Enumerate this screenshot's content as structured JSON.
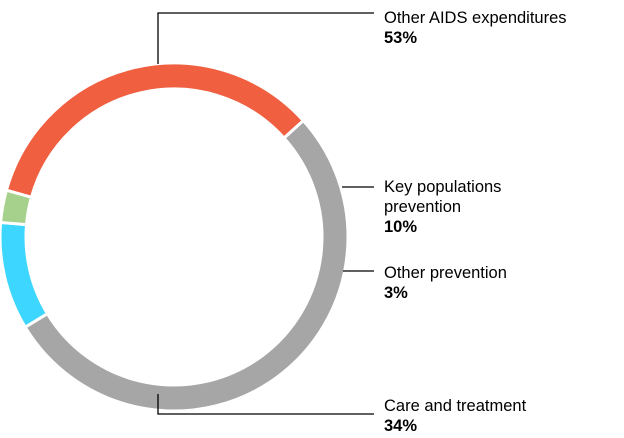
{
  "chart_data": {
    "type": "pie",
    "style": "donut",
    "slices": [
      {
        "label": "Other AIDS expenditures",
        "label_lines": [
          "Other AIDS expenditures"
        ],
        "value": 53,
        "display": "53%",
        "color": "#a6a6a6"
      },
      {
        "label": "Key populations prevention",
        "label_lines": [
          "Key populations",
          "prevention"
        ],
        "value": 10,
        "display": "10%",
        "color": "#3dd6ff"
      },
      {
        "label": "Other prevention",
        "label_lines": [
          "Other prevention"
        ],
        "value": 3,
        "display": "3%",
        "color": "#a6d18c"
      },
      {
        "label": "Care and treatment",
        "label_lines": [
          "Care and treatment"
        ],
        "value": 34,
        "display": "34%",
        "color": "#f05f40"
      }
    ],
    "slice_border_color": "#ffffff",
    "leader_line_color": "#000000"
  }
}
